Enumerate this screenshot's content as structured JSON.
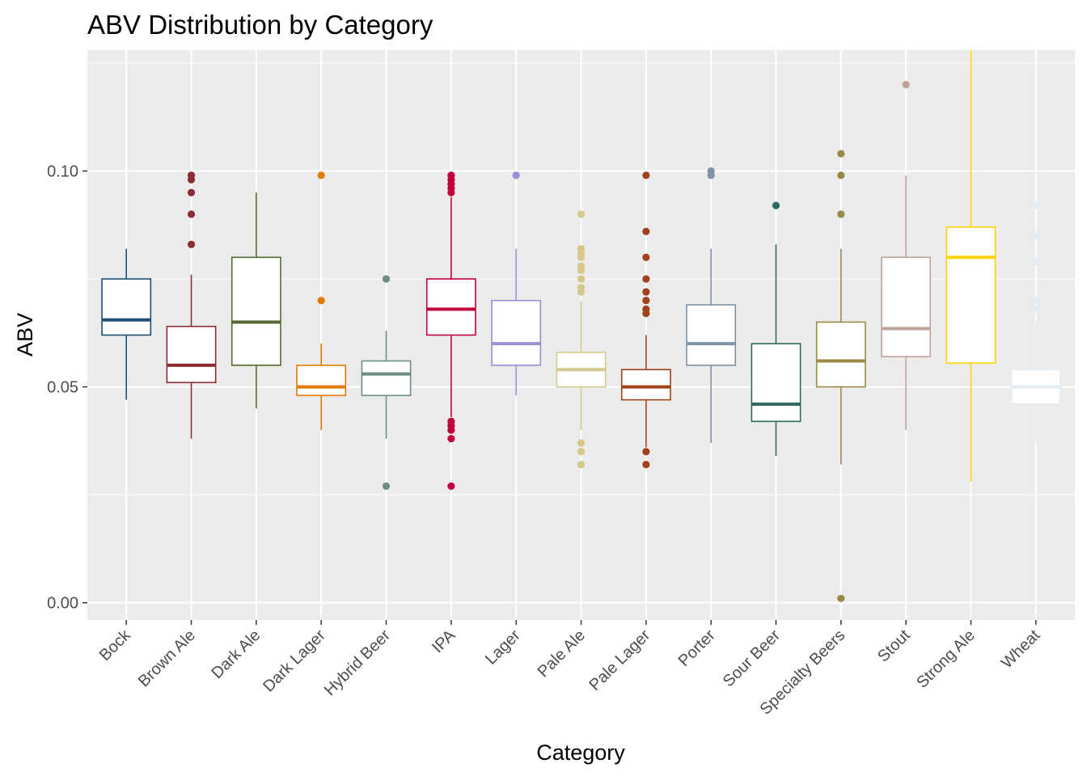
{
  "chart_data": {
    "type": "boxplot",
    "title": "ABV Distribution by Category",
    "xlabel": "Category",
    "ylabel": "ABV",
    "ylim": [
      -0.004,
      0.128
    ],
    "yticks": [
      0.0,
      0.05,
      0.1
    ],
    "ytick_labels": [
      "0.00",
      "0.05",
      "0.10"
    ],
    "grid": true,
    "legend": "none",
    "categories": [
      "Bock",
      "Brown Ale",
      "Dark Ale",
      "Dark Lager",
      "Hybrid Beer",
      "IPA",
      "Lager",
      "Pale Ale",
      "Pale Lager",
      "Porter",
      "Sour Beer",
      "Specialty Beers",
      "Stout",
      "Strong Ale",
      "Wheat"
    ],
    "colors": [
      "#1f4e79",
      "#8b2d35",
      "#556b2f",
      "#e07b00",
      "#6b8e7f",
      "#c0003a",
      "#9a8fd6",
      "#d4c88a",
      "#a0431a",
      "#7f93a6",
      "#2e6b5e",
      "#9c8845",
      "#bfa09a",
      "#ffd400",
      "#e3ecf2"
    ],
    "boxes": [
      {
        "whisker_low": 0.047,
        "q1": 0.062,
        "median": 0.0655,
        "q3": 0.075,
        "whisker_high": 0.082,
        "outliers": []
      },
      {
        "whisker_low": 0.038,
        "q1": 0.051,
        "median": 0.055,
        "q3": 0.064,
        "whisker_high": 0.076,
        "outliers": [
          0.083,
          0.09,
          0.095,
          0.098,
          0.099
        ]
      },
      {
        "whisker_low": 0.045,
        "q1": 0.055,
        "median": 0.065,
        "q3": 0.08,
        "whisker_high": 0.095,
        "outliers": []
      },
      {
        "whisker_low": 0.04,
        "q1": 0.048,
        "median": 0.05,
        "q3": 0.055,
        "whisker_high": 0.06,
        "outliers": [
          0.07,
          0.099
        ]
      },
      {
        "whisker_low": 0.038,
        "q1": 0.048,
        "median": 0.053,
        "q3": 0.056,
        "whisker_high": 0.063,
        "outliers": [
          0.027,
          0.075
        ]
      },
      {
        "whisker_low": 0.043,
        "q1": 0.062,
        "median": 0.068,
        "q3": 0.075,
        "whisker_high": 0.094,
        "outliers": [
          0.027,
          0.038,
          0.04,
          0.041,
          0.042,
          0.095,
          0.096,
          0.097,
          0.098,
          0.099
        ]
      },
      {
        "whisker_low": 0.048,
        "q1": 0.055,
        "median": 0.06,
        "q3": 0.07,
        "whisker_high": 0.082,
        "outliers": [
          0.099
        ]
      },
      {
        "whisker_low": 0.04,
        "q1": 0.05,
        "median": 0.054,
        "q3": 0.058,
        "whisker_high": 0.07,
        "outliers": [
          0.032,
          0.035,
          0.037,
          0.072,
          0.073,
          0.075,
          0.077,
          0.078,
          0.08,
          0.081,
          0.082,
          0.09
        ]
      },
      {
        "whisker_low": 0.036,
        "q1": 0.047,
        "median": 0.05,
        "q3": 0.054,
        "whisker_high": 0.062,
        "outliers": [
          0.032,
          0.035,
          0.067,
          0.068,
          0.07,
          0.072,
          0.075,
          0.08,
          0.086,
          0.099
        ]
      },
      {
        "whisker_low": 0.037,
        "q1": 0.055,
        "median": 0.06,
        "q3": 0.069,
        "whisker_high": 0.082,
        "outliers": [
          0.099,
          0.1
        ]
      },
      {
        "whisker_low": 0.034,
        "q1": 0.042,
        "median": 0.046,
        "q3": 0.06,
        "whisker_high": 0.083,
        "outliers": [
          0.092
        ]
      },
      {
        "whisker_low": 0.032,
        "q1": 0.05,
        "median": 0.056,
        "q3": 0.065,
        "whisker_high": 0.082,
        "outliers": [
          0.001,
          0.09,
          0.099,
          0.104
        ]
      },
      {
        "whisker_low": 0.04,
        "q1": 0.057,
        "median": 0.0635,
        "q3": 0.08,
        "whisker_high": 0.099,
        "outliers": [
          0.12
        ]
      },
      {
        "whisker_low": 0.028,
        "q1": 0.0555,
        "median": 0.08,
        "q3": 0.087,
        "whisker_high": 0.128,
        "outliers": []
      },
      {
        "whisker_low": 0.037,
        "q1": 0.046,
        "median": 0.05,
        "q3": 0.054,
        "whisker_high": 0.065,
        "outliers": [
          0.068,
          0.07,
          0.079,
          0.085,
          0.092
        ]
      }
    ]
  }
}
